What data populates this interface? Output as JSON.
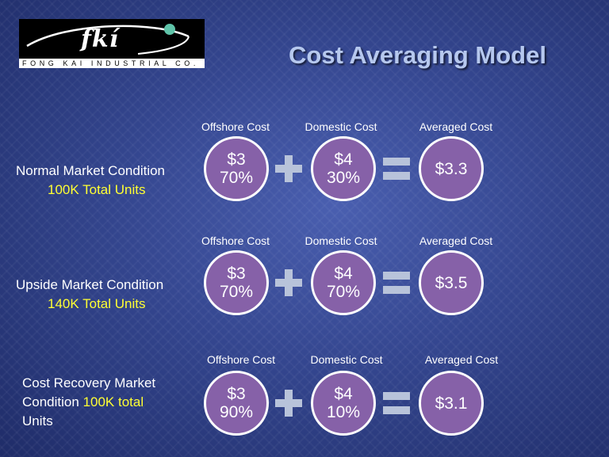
{
  "logo": {
    "mark": "fkí",
    "company": "FONG KAI INDUSTRIAL CO."
  },
  "title": "Cost Averaging Model",
  "rows": [
    {
      "condition_lines": [
        "Normal Market Condition"
      ],
      "condition_highlight": "100K Total Units",
      "labels": {
        "offshore": "Offshore Cost",
        "domestic": "Domestic Cost",
        "averaged": "Averaged Cost"
      },
      "offshore": {
        "price": "$3",
        "share": "70%"
      },
      "domestic": {
        "price": "$4",
        "share": "30%"
      },
      "averaged": "$3.3"
    },
    {
      "condition_lines": [
        "Upside Market Condition"
      ],
      "condition_highlight": "140K Total Units",
      "labels": {
        "offshore": "Offshore Cost",
        "domestic": "Domestic Cost",
        "averaged": "Averaged Cost"
      },
      "offshore": {
        "price": "$3",
        "share": "70%"
      },
      "domestic": {
        "price": "$4",
        "share": "70%"
      },
      "averaged": "$3.5"
    },
    {
      "condition_line1": "Cost Recovery Market",
      "condition_line2_prefix": "Condition",
      "condition_highlight": "100K total",
      "condition_line3": "Units",
      "labels": {
        "offshore": "Offshore Cost",
        "domestic": "Domestic Cost",
        "averaged": "Averaged Cost"
      },
      "offshore": {
        "price": "$3",
        "share": "90%"
      },
      "domestic": {
        "price": "$4",
        "share": "10%"
      },
      "averaged": "$3.1"
    }
  ],
  "colors": {
    "circle": "#8661a8",
    "highlight": "#ffff33",
    "title": "#b6c8ee"
  }
}
